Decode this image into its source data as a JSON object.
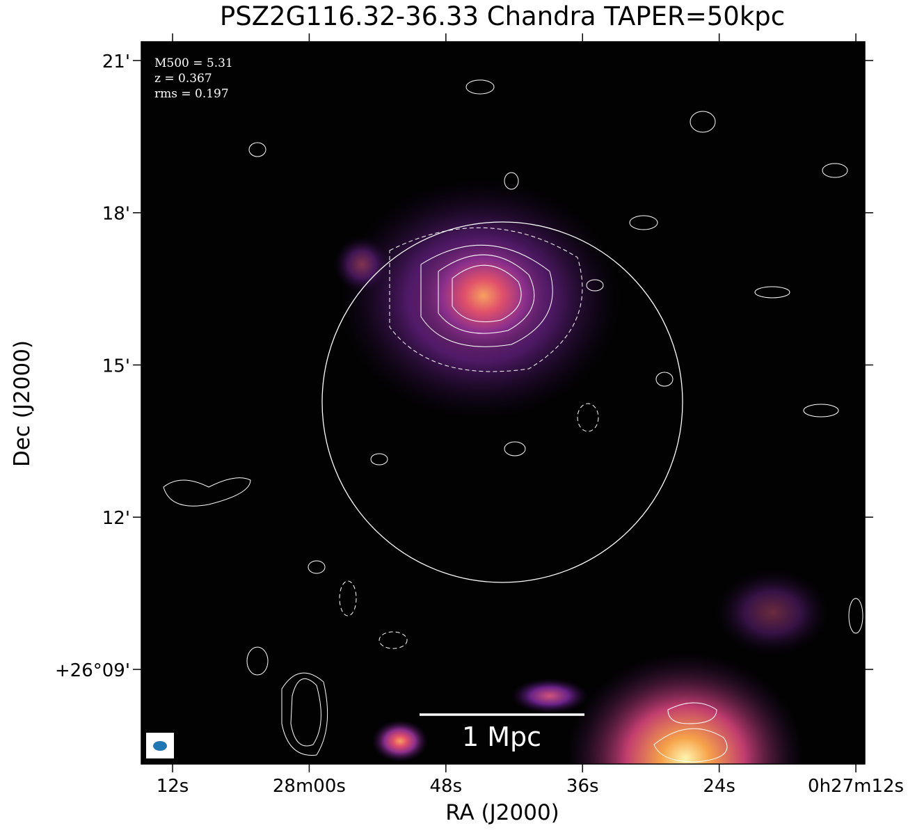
{
  "chart_data": {
    "type": "image",
    "title": "PSZ2G116.32-36.33 Chandra TAPER=50kpc",
    "annotations": [
      "M500 = 5.31",
      "z = 0.367",
      "rms = 0.197"
    ],
    "scale_bar_label": "1 Mpc",
    "xlabel": "RA (J2000)",
    "ylabel": "Dec (J2000)",
    "xlim": [
      1694.75,
      1631.21
    ],
    "xticks": [
      {
        "value": 1692,
        "label": "12s"
      },
      {
        "value": 1680,
        "label": "28m00s"
      },
      {
        "value": 1668,
        "label": "48s"
      },
      {
        "value": 1656,
        "label": "36s"
      },
      {
        "value": 1644,
        "label": "24s"
      },
      {
        "value": 1632,
        "label": "0h27m12s"
      }
    ],
    "ylim": [
      7.135,
      21.37
    ],
    "yticks": [
      {
        "value": 21,
        "label": "21'"
      },
      {
        "value": 18,
        "label": "18'"
      },
      {
        "value": 15,
        "label": "15'"
      },
      {
        "value": 12,
        "label": "12'"
      },
      {
        "value": 9,
        "label": "+26°09'"
      }
    ]
  }
}
